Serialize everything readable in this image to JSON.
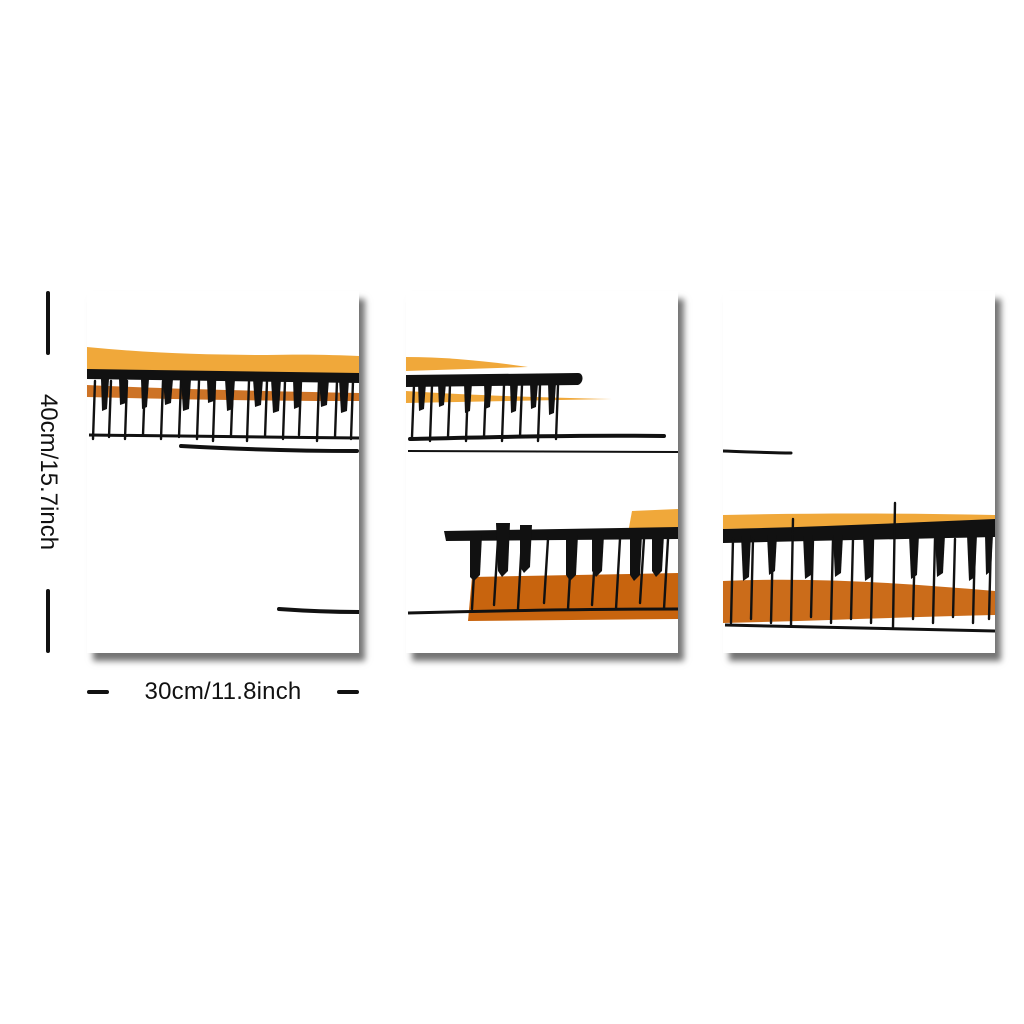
{
  "dimensions": {
    "width_label": "30cm/11.8inch",
    "height_label": "40cm/15.7inch"
  },
  "colors": {
    "light_orange": "#f0a83a",
    "dark_orange": "#c8640e",
    "ink": "#111111",
    "canvas": "#ffffff"
  },
  "panels": [
    "panel-left",
    "panel-middle",
    "panel-right"
  ]
}
